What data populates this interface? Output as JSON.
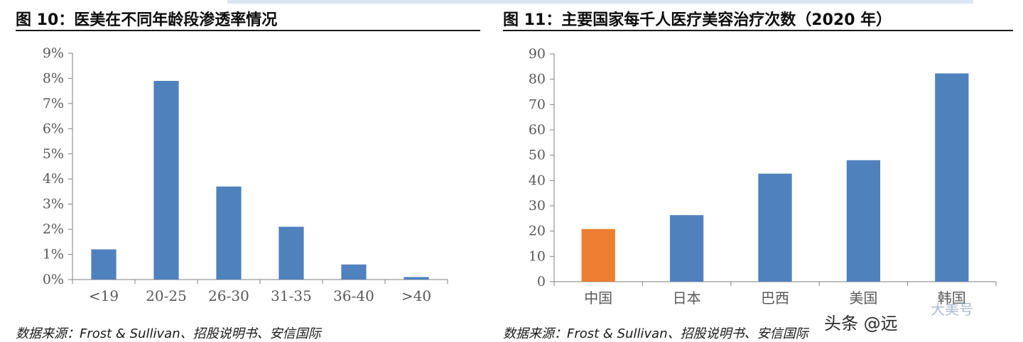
{
  "panels": [
    {
      "title": "图 10：医美在不同年龄段渗透率情况",
      "source": "数据来源：Frost & Sullivan、招股说明书、安信国际"
    },
    {
      "title": "图 11：主要国家每千人医疗美容治疗次数（2020 年）",
      "source": "数据来源：Frost & Sullivan、招股说明书、安信国际"
    }
  ],
  "watermark": {
    "text": "头条 @远",
    "corner": "大美号"
  },
  "chart_data": [
    {
      "type": "bar",
      "title": "图 10：医美在不同年龄段渗透率情况",
      "xlabel": "",
      "ylabel": "",
      "categories": [
        "<19",
        "20-25",
        "26-30",
        "31-35",
        "36-40",
        ">40"
      ],
      "values": [
        1.2,
        7.9,
        3.7,
        2.1,
        0.6,
        0.1
      ],
      "ylim": [
        0,
        9
      ],
      "yticks": [
        "0%",
        "1%",
        "2%",
        "3%",
        "4%",
        "5%",
        "6%",
        "7%",
        "8%",
        "9%"
      ],
      "bar_colors": [
        "#4f81bd",
        "#4f81bd",
        "#4f81bd",
        "#4f81bd",
        "#4f81bd",
        "#4f81bd"
      ],
      "grid": false,
      "legend": "none"
    },
    {
      "type": "bar",
      "title": "图 11：主要国家每千人医疗美容治疗次数（2020 年）",
      "xlabel": "",
      "ylabel": "",
      "categories": [
        "中国",
        "日本",
        "巴西",
        "美国",
        "韩国"
      ],
      "values": [
        20.8,
        26.3,
        42.7,
        48.0,
        82.3
      ],
      "ylim": [
        0,
        90
      ],
      "yticks": [
        "0",
        "10",
        "20",
        "30",
        "40",
        "50",
        "60",
        "70",
        "80",
        "90"
      ],
      "bar_colors": [
        "#ed7d31",
        "#4f81bd",
        "#4f81bd",
        "#4f81bd",
        "#4f81bd"
      ],
      "grid": false,
      "legend": "none"
    }
  ]
}
